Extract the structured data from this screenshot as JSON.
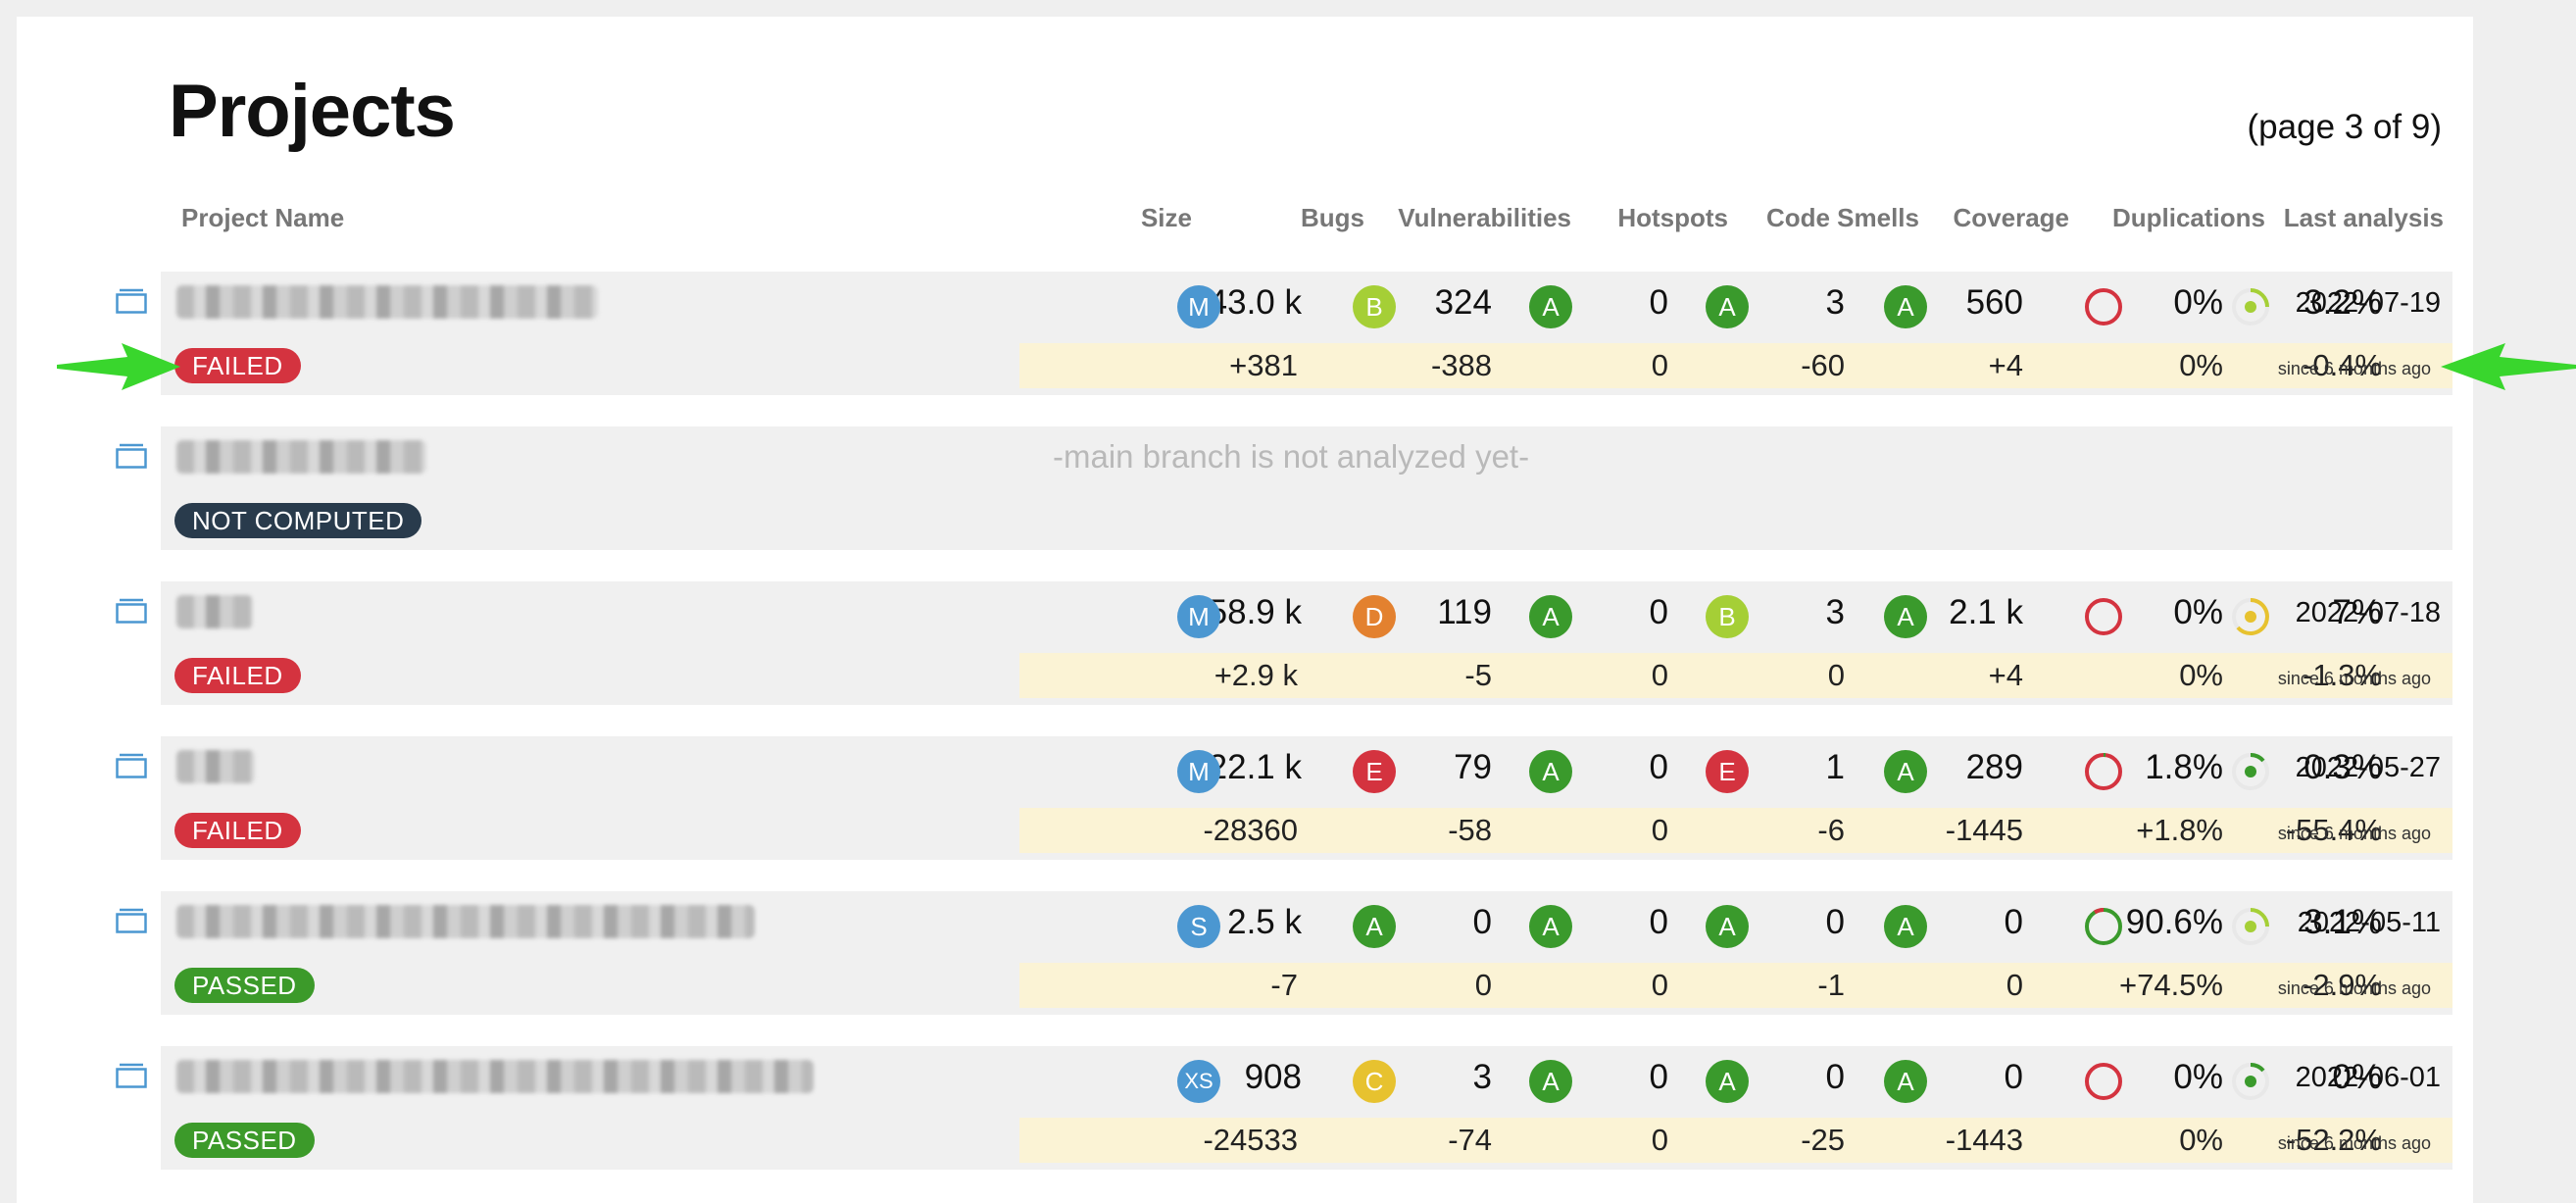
{
  "page": {
    "title": "Projects",
    "page_info": "(page 3 of 9)"
  },
  "columns": {
    "project_name": "Project Name",
    "size": "Size",
    "bugs": "Bugs",
    "vulnerabilities": "Vulnerabilities",
    "hotspots": "Hotspots",
    "code_smells": "Code Smells",
    "coverage": "Coverage",
    "duplications": "Duplications",
    "last_analysis": "Last analysis"
  },
  "colors": {
    "failed": "#d4333f",
    "passed": "#3c9a2a",
    "not_computed": "#293b4c",
    "new_code_bg": "#fbf3d5",
    "row_bg": "#f0f0f0",
    "arrow": "#39d62d",
    "rating_A": "#3a9a2c",
    "rating_B": "#a5cf36",
    "rating_C": "#e7c22f",
    "rating_D": "#e3812f",
    "rating_E": "#d4333f",
    "size_badge": "#4b97d1"
  },
  "projects": [
    {
      "status": "FAILED",
      "size": "43.0 k",
      "size_rating": "M",
      "bugs": "324",
      "bugs_rating": "B",
      "vulnerabilities": "0",
      "vulnerabilities_rating": "A",
      "hotspots": "3",
      "hotspots_rating": "A",
      "code_smells": "560",
      "code_smells_rating": "A",
      "coverage": "0%",
      "duplications": "3.2%",
      "last_analysis": "2022-07-19",
      "new_code": {
        "size": "+381",
        "bugs": "-388",
        "vulnerabilities": "0",
        "hotspots": "-60",
        "code_smells": "+4",
        "coverage": "0%",
        "duplications": "-0.4%",
        "since": "since 6 months ago"
      }
    },
    {
      "status": "NOT COMPUTED",
      "message": "-main branch is not analyzed yet-"
    },
    {
      "status": "FAILED",
      "size": "58.9 k",
      "size_rating": "M",
      "bugs": "119",
      "bugs_rating": "D",
      "vulnerabilities": "0",
      "vulnerabilities_rating": "A",
      "hotspots": "3",
      "hotspots_rating": "B",
      "code_smells": "2.1 k",
      "code_smells_rating": "A",
      "coverage": "0%",
      "duplications": "7%",
      "last_analysis": "2022-07-18",
      "new_code": {
        "size": "+2.9 k",
        "bugs": "-5",
        "vulnerabilities": "0",
        "hotspots": "0",
        "code_smells": "+4",
        "coverage": "0%",
        "duplications": "-1.3%",
        "since": "since 6 months ago"
      }
    },
    {
      "status": "FAILED",
      "size": "22.1 k",
      "size_rating": "M",
      "bugs": "79",
      "bugs_rating": "E",
      "vulnerabilities": "0",
      "vulnerabilities_rating": "A",
      "hotspots": "1",
      "hotspots_rating": "E",
      "code_smells": "289",
      "code_smells_rating": "A",
      "coverage": "1.8%",
      "duplications": "0.3%",
      "last_analysis": "2022-05-27",
      "new_code": {
        "size": "-28360",
        "bugs": "-58",
        "vulnerabilities": "0",
        "hotspots": "-6",
        "code_smells": "-1445",
        "coverage": "+1.8%",
        "duplications": "-55.4%",
        "since": "since 6 months ago"
      }
    },
    {
      "status": "PASSED",
      "size": "2.5 k",
      "size_rating": "S",
      "bugs": "0",
      "bugs_rating": "A",
      "vulnerabilities": "0",
      "vulnerabilities_rating": "A",
      "hotspots": "0",
      "hotspots_rating": "A",
      "code_smells": "0",
      "code_smells_rating": "A",
      "coverage": "90.6%",
      "duplications": "3.1%",
      "last_analysis": "2022-05-11",
      "new_code": {
        "size": "-7",
        "bugs": "0",
        "vulnerabilities": "0",
        "hotspots": "-1",
        "code_smells": "0",
        "coverage": "+74.5%",
        "duplications": "-2.9%",
        "since": "since 6 months ago"
      }
    },
    {
      "status": "PASSED",
      "size": "908",
      "size_rating": "XS",
      "bugs": "3",
      "bugs_rating": "C",
      "vulnerabilities": "0",
      "vulnerabilities_rating": "A",
      "hotspots": "0",
      "hotspots_rating": "A",
      "code_smells": "0",
      "code_smells_rating": "A",
      "coverage": "0%",
      "duplications": "0%",
      "last_analysis": "2022-06-01",
      "new_code": {
        "size": "-24533",
        "bugs": "-74",
        "vulnerabilities": "0",
        "hotspots": "-25",
        "code_smells": "-1443",
        "coverage": "0%",
        "duplications": "-52.2%",
        "since": "since 6 months ago"
      }
    }
  ]
}
